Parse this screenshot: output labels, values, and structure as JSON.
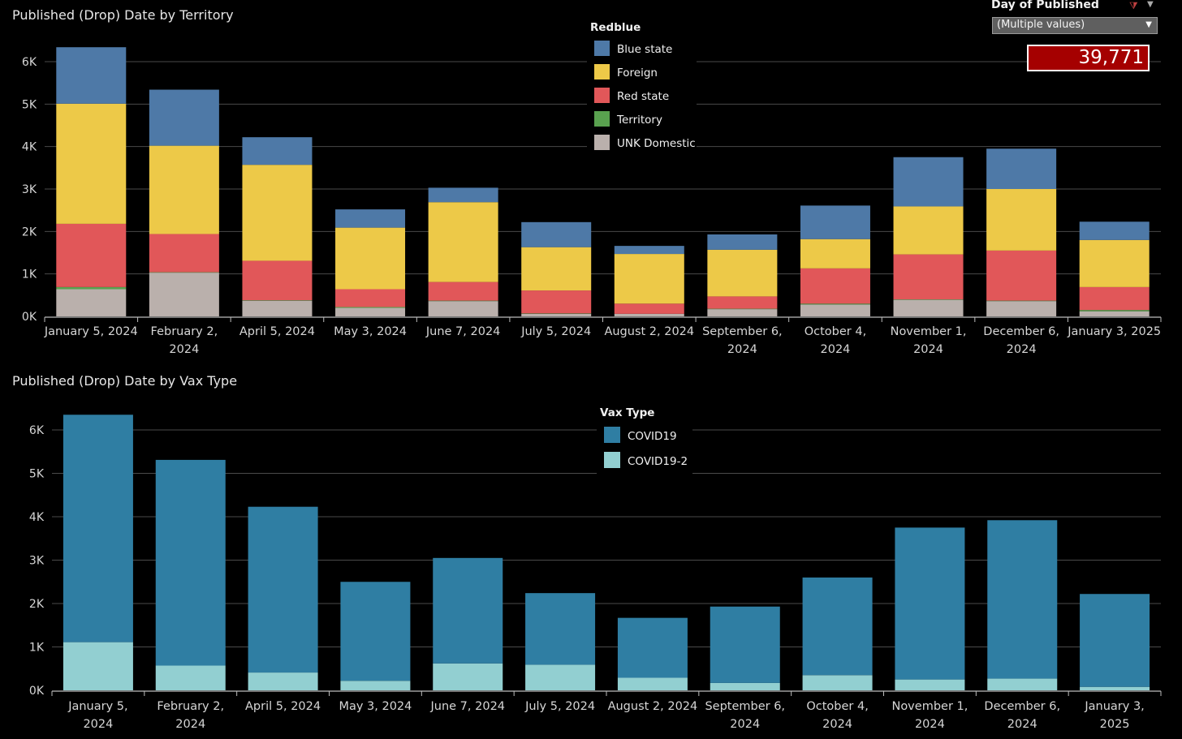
{
  "filter": {
    "title": "Day of Published",
    "selected": "(Multiple values)",
    "icon": "filter-clear-icon",
    "menu_icon": "dropdown-arrow-icon"
  },
  "kpi": {
    "value": "39,771",
    "color": "#a50000"
  },
  "chart_data": [
    {
      "type": "bar",
      "stacked": true,
      "title": "Published (Drop) Date by Territory",
      "xlabel": "",
      "ylabel": "",
      "ylim": [
        0,
        6500
      ],
      "yticks": [
        "0K",
        "1K",
        "2K",
        "3K",
        "4K",
        "5K",
        "6K"
      ],
      "grid": true,
      "legend_title": "Redblue",
      "legend_position": "top-center",
      "categories": [
        [
          "January 5, 2024"
        ],
        [
          "February 2,",
          "2024"
        ],
        [
          "April 5, 2024"
        ],
        [
          "May 3, 2024"
        ],
        [
          "June 7, 2024"
        ],
        [
          "July 5, 2024"
        ],
        [
          "August 2, 2024"
        ],
        [
          "September 6,",
          "2024"
        ],
        [
          "October 4,",
          "2024"
        ],
        [
          "November 1,",
          "2024"
        ],
        [
          "December 6,",
          "2024"
        ],
        [
          "January 3, 2025"
        ]
      ],
      "series": [
        {
          "name": "UNK Domestic",
          "color": "#bab0ac",
          "values": [
            640,
            1030,
            370,
            200,
            360,
            60,
            60,
            170,
            280,
            390,
            360,
            120
          ]
        },
        {
          "name": "Territory",
          "color": "#59a14f",
          "values": [
            50,
            10,
            10,
            20,
            10,
            10,
            0,
            10,
            20,
            10,
            10,
            30
          ]
        },
        {
          "name": "Red state",
          "color": "#e15759",
          "values": [
            1490,
            900,
            930,
            420,
            440,
            540,
            240,
            290,
            830,
            1060,
            1180,
            540
          ]
        },
        {
          "name": "Foreign",
          "color": "#edc948",
          "values": [
            2830,
            2080,
            2260,
            1450,
            1880,
            1020,
            1170,
            1100,
            690,
            1130,
            1450,
            1110
          ]
        },
        {
          "name": "Blue state",
          "color": "#4e79a7",
          "values": [
            1330,
            1320,
            650,
            430,
            340,
            590,
            190,
            360,
            790,
            1160,
            950,
            430
          ]
        }
      ]
    },
    {
      "type": "bar",
      "stacked": true,
      "title": "Published (Drop) Date by Vax Type",
      "xlabel": "",
      "ylabel": "",
      "ylim": [
        0,
        6500
      ],
      "yticks": [
        "0K",
        "1K",
        "2K",
        "3K",
        "4K",
        "5K",
        "6K"
      ],
      "grid": true,
      "legend_title": "Vax Type",
      "legend_position": "top-center",
      "categories": [
        [
          "January 5,",
          "2024"
        ],
        [
          "February 2,",
          "2024"
        ],
        [
          "April 5, 2024"
        ],
        [
          "May 3, 2024"
        ],
        [
          "June 7, 2024"
        ],
        [
          "July 5, 2024"
        ],
        [
          "August 2, 2024"
        ],
        [
          "September 6,",
          "2024"
        ],
        [
          "October 4,",
          "2024"
        ],
        [
          "November 1,",
          "2024"
        ],
        [
          "December 6,",
          "2024"
        ],
        [
          "January 3,",
          "2025"
        ]
      ],
      "series": [
        {
          "name": "COVID19-2",
          "color": "#92cfd1",
          "values": [
            1110,
            570,
            410,
            220,
            620,
            590,
            290,
            170,
            350,
            250,
            270,
            80
          ]
        },
        {
          "name": "COVID19",
          "color": "#2f7ea3",
          "values": [
            5240,
            4740,
            3820,
            2280,
            2430,
            1650,
            1380,
            1760,
            2250,
            3500,
            3650,
            2140
          ]
        }
      ]
    }
  ]
}
